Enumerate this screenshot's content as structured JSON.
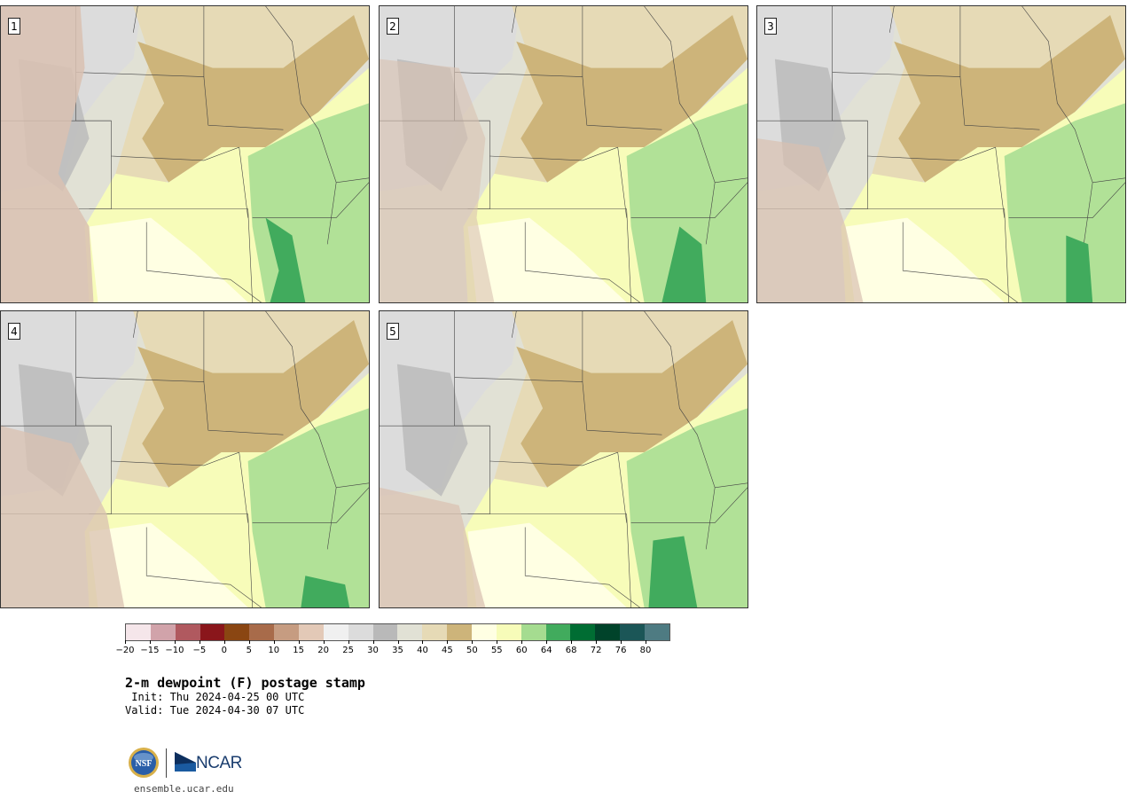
{
  "panels": [
    {
      "label": "1"
    },
    {
      "label": "2"
    },
    {
      "label": "3"
    },
    {
      "label": "4"
    },
    {
      "label": "5"
    }
  ],
  "colorbar": {
    "colors": [
      "#f5e6ea",
      "#d1a3aa",
      "#b0595f",
      "#8a161b",
      "#8a4612",
      "#a86b4a",
      "#c69c81",
      "#e3c9b7",
      "#f0f0f0",
      "#dcdcdc",
      "#b9b9b9",
      "#e1e1d5",
      "#e6dab6",
      "#cdb47a",
      "#ffffe3",
      "#f7fcb9",
      "#a5dc90",
      "#41ab5d",
      "#006d33",
      "#00432a",
      "#1b5657",
      "#4e7b82"
    ],
    "tick_labels": [
      "−20",
      "−15",
      "−10",
      "−5",
      "0",
      "5",
      "10",
      "15",
      "20",
      "25",
      "30",
      "35",
      "40",
      "45",
      "50",
      "55",
      "60",
      "64",
      "68",
      "72",
      "76",
      "80"
    ]
  },
  "title": "2-m dewpoint (F) postage stamp",
  "init": " Init: Thu 2024-04-25 00 UTC",
  "valid": "Valid: Tue 2024-04-30 07 UTC",
  "logo": {
    "nsf_icon": "nsf-logo-icon",
    "ncar_text": "NCAR"
  },
  "site": "ensemble.ucar.edu"
}
